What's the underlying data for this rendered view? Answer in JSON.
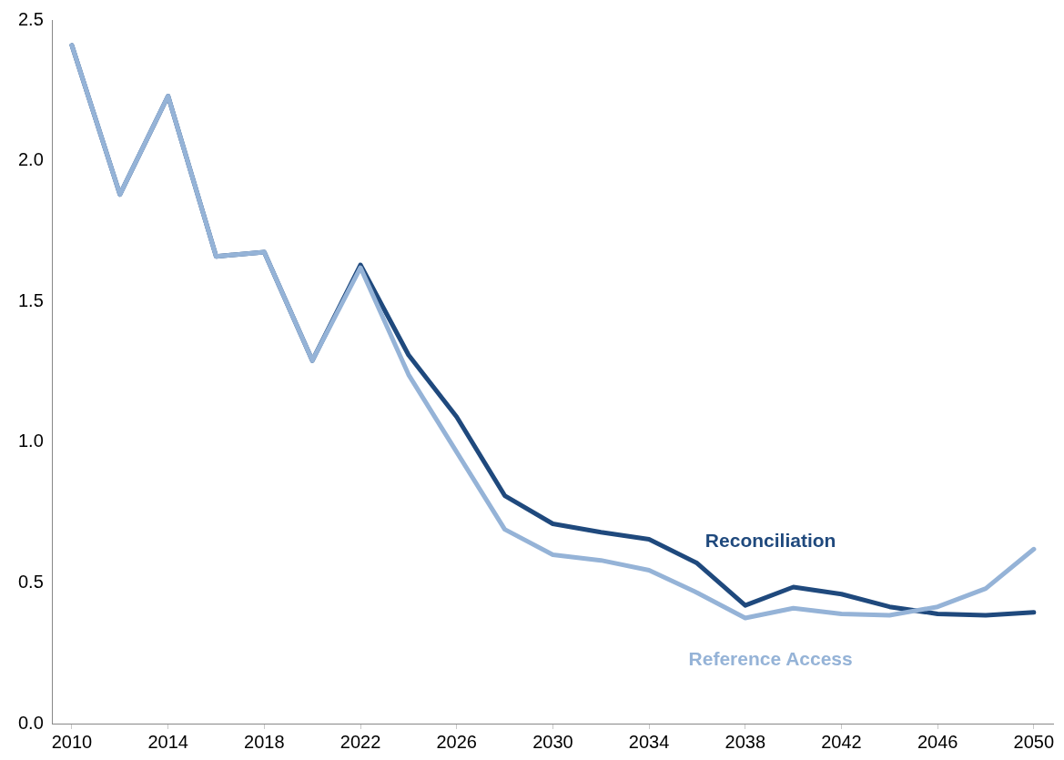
{
  "chart_data": {
    "type": "line",
    "x": [
      2010,
      2012,
      2014,
      2016,
      2018,
      2020,
      2022,
      2024,
      2026,
      2028,
      2030,
      2032,
      2034,
      2036,
      2038,
      2040,
      2042,
      2044,
      2046,
      2048,
      2050
    ],
    "series": [
      {
        "name": "Reference Access",
        "color": "#95b3d7",
        "values": [
          2.41,
          1.88,
          2.23,
          1.66,
          1.675,
          1.29,
          1.62,
          1.24,
          0.965,
          0.69,
          0.6,
          0.58,
          0.545,
          0.465,
          0.375,
          0.41,
          0.39,
          0.385,
          0.415,
          0.48,
          0.62
        ]
      },
      {
        "name": "Reconciliation",
        "color": "#1f497d",
        "values": [
          2.41,
          1.88,
          2.23,
          1.66,
          1.675,
          1.29,
          1.63,
          1.31,
          1.09,
          0.81,
          0.71,
          0.68,
          0.655,
          0.57,
          0.42,
          0.485,
          0.46,
          0.415,
          0.39,
          0.385,
          0.395
        ]
      }
    ],
    "xlim": [
      2009.2,
      2050.8
    ],
    "xticks": [
      2010,
      2014,
      2018,
      2022,
      2026,
      2030,
      2034,
      2038,
      2042,
      2046,
      2050
    ],
    "ylim": [
      0,
      2.5
    ],
    "yticks": [
      {
        "value": 0,
        "label": "0.0"
      },
      {
        "value": 0.5,
        "label": "0.5"
      },
      {
        "value": 1,
        "label": "1.0"
      },
      {
        "value": 1.5,
        "label": "1.5"
      },
      {
        "value": 2,
        "label": "2.0"
      },
      {
        "value": 2.5,
        "label": "2.5"
      }
    ],
    "grid": false,
    "legend": false,
    "marker": "none",
    "line_style": "solid"
  }
}
